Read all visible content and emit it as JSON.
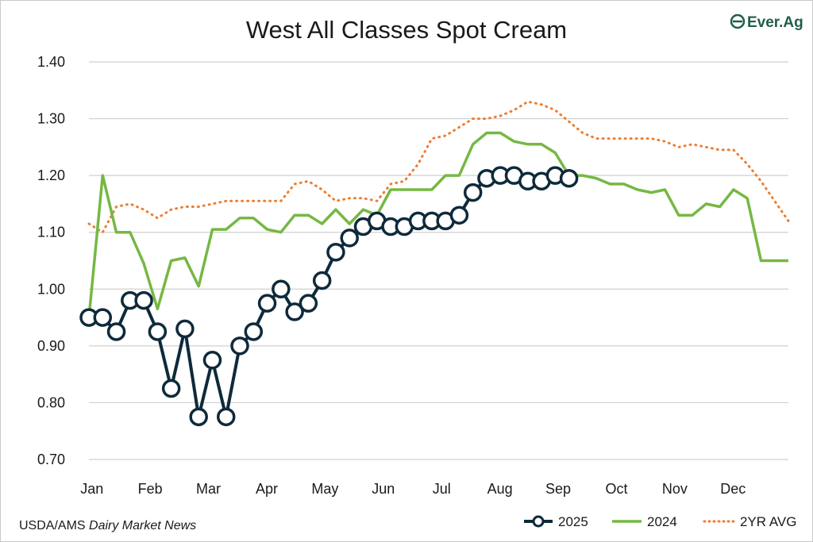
{
  "chart_data": {
    "type": "line",
    "title": "West All Classes Spot Cream",
    "xlabel": "",
    "ylabel": "",
    "ylim": [
      0.7,
      1.4
    ],
    "yticks": [
      "0.70",
      "0.80",
      "0.90",
      "1.00",
      "1.10",
      "1.20",
      "1.30",
      "1.40"
    ],
    "month_labels": [
      "Jan",
      "Feb",
      "Mar",
      "Apr",
      "May",
      "Jun",
      "Jul",
      "Aug",
      "Sep",
      "Oct",
      "Nov",
      "Dec"
    ],
    "week_count": 52,
    "grid": "horizontal",
    "legend_position": "bottom-right",
    "series": [
      {
        "name": "2025",
        "color": "#0e2a3b",
        "style": "line-circle-markers",
        "values": [
          0.95,
          0.95,
          0.925,
          0.98,
          0.98,
          0.925,
          0.825,
          0.93,
          0.775,
          0.875,
          0.775,
          0.9,
          0.925,
          0.975,
          1.0,
          0.96,
          0.975,
          1.015,
          1.065,
          1.09,
          1.11,
          1.12,
          1.11,
          1.11,
          1.12,
          1.12,
          1.12,
          1.13,
          1.17,
          1.195,
          1.2,
          1.2,
          1.19,
          1.19,
          1.2,
          1.195
        ]
      },
      {
        "name": "2024",
        "color": "#76b843",
        "style": "solid",
        "values": [
          0.95,
          1.2,
          1.1,
          1.1,
          1.045,
          0.965,
          1.05,
          1.055,
          1.005,
          1.105,
          1.105,
          1.125,
          1.125,
          1.105,
          1.1,
          1.13,
          1.13,
          1.115,
          1.14,
          1.115,
          1.14,
          1.13,
          1.175,
          1.175,
          1.175,
          1.175,
          1.2,
          1.2,
          1.255,
          1.275,
          1.275,
          1.26,
          1.255,
          1.255,
          1.24,
          1.2,
          1.2,
          1.195,
          1.185,
          1.185,
          1.175,
          1.17,
          1.175,
          1.13,
          1.13,
          1.15,
          1.145,
          1.175,
          1.16,
          1.05,
          1.05,
          1.05
        ]
      },
      {
        "name": "2YR AVG",
        "color": "#ed7d31",
        "style": "dotted",
        "values": [
          1.115,
          1.1,
          1.145,
          1.15,
          1.14,
          1.125,
          1.14,
          1.145,
          1.145,
          1.15,
          1.155,
          1.155,
          1.155,
          1.155,
          1.155,
          1.185,
          1.19,
          1.175,
          1.155,
          1.16,
          1.16,
          1.155,
          1.185,
          1.19,
          1.22,
          1.265,
          1.27,
          1.285,
          1.3,
          1.3,
          1.305,
          1.315,
          1.33,
          1.325,
          1.315,
          1.295,
          1.275,
          1.265,
          1.265,
          1.265,
          1.265,
          1.265,
          1.26,
          1.25,
          1.255,
          1.25,
          1.245,
          1.245,
          1.22,
          1.19,
          1.155,
          1.12
        ]
      }
    ]
  },
  "source": {
    "prefix": "USDA/AMS ",
    "italic": "Dairy Market News"
  },
  "logo": {
    "text": "Ever.Ag",
    "color": "#1f5f4a"
  }
}
